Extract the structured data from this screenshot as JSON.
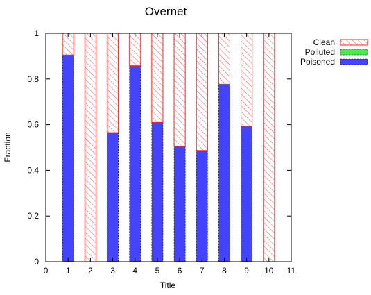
{
  "chart_data": {
    "type": "bar",
    "stacked": true,
    "title": "Overnet",
    "xlabel": "Title",
    "ylabel": "Fraction",
    "xlim": [
      0,
      11
    ],
    "ylim": [
      0,
      1
    ],
    "x_ticks": [
      "0",
      "1",
      "2",
      "3",
      "4",
      "5",
      "6",
      "7",
      "8",
      "9",
      "10",
      "11"
    ],
    "y_ticks": [
      "0",
      "0.2",
      "0.4",
      "0.6",
      "0.8",
      "1"
    ],
    "categories": [
      "1",
      "2",
      "3",
      "4",
      "5",
      "6",
      "7",
      "8",
      "9",
      "10"
    ],
    "grid": false,
    "legend_position": "top-right",
    "series": [
      {
        "name": "Poisoned",
        "color": "#4444ff",
        "pattern": "solid",
        "values": [
          0.905,
          0.0,
          0.565,
          0.858,
          0.61,
          0.505,
          0.487,
          0.777,
          0.593,
          0.0
        ]
      },
      {
        "name": "Polluted",
        "color": "#44ee44",
        "pattern": "solid",
        "values": [
          0,
          0,
          0,
          0,
          0,
          0,
          0,
          0,
          0,
          0
        ]
      },
      {
        "name": "Clean",
        "color": "#ff2222",
        "pattern": "hatched",
        "values": [
          0.095,
          1.0,
          0.435,
          0.142,
          0.39,
          0.495,
          0.513,
          0.223,
          0.407,
          1.0
        ]
      }
    ],
    "legend_order": [
      "Clean",
      "Polluted",
      "Poisoned"
    ]
  }
}
